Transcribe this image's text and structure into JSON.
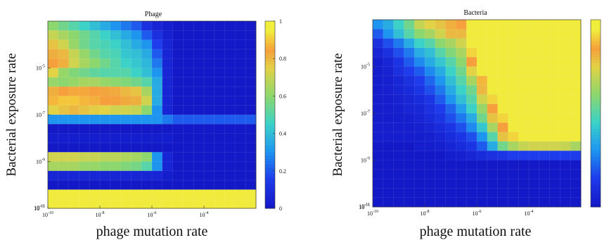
{
  "chart_data": [
    {
      "type": "heatmap",
      "title": "Phage",
      "xlabel": "phage mutation rate",
      "ylabel": "Bacterial exposure rate",
      "xticks": [
        "10^{-10}",
        "10^{-8}",
        "10^{-6}",
        "10^{-4}"
      ],
      "yticks": [
        "10^{-5}",
        "10^{-7}",
        "10^{-9}",
        "10^{-11}"
      ],
      "x_log_range": [
        -10,
        -2
      ],
      "y_log_range": [
        -11,
        -3
      ],
      "colorbar": {
        "ticks": [
          "0",
          "0.2",
          "0.4",
          "0.6",
          "0.8",
          "1"
        ],
        "range": [
          0,
          1
        ]
      },
      "grid": "rows (top to bottom: high to low exposure rate) x columns (low to high mutation rate), 20 x 20, values 0-1",
      "values": [
        [
          0.6,
          0.55,
          0.5,
          0.45,
          0.4,
          0.35,
          0.3,
          0.25,
          0.2,
          0.1,
          0.05,
          0.02,
          0.0,
          0.0,
          0.0,
          0.0,
          0.0,
          0.0,
          0.0,
          0.0
        ],
        [
          0.7,
          0.65,
          0.6,
          0.55,
          0.5,
          0.45,
          0.4,
          0.35,
          0.3,
          0.2,
          0.1,
          0.03,
          0.0,
          0.0,
          0.0,
          0.0,
          0.0,
          0.0,
          0.0,
          0.0
        ],
        [
          0.78,
          0.72,
          0.62,
          0.55,
          0.5,
          0.48,
          0.45,
          0.4,
          0.35,
          0.3,
          0.15,
          0.05,
          0.0,
          0.0,
          0.0,
          0.0,
          0.0,
          0.0,
          0.0,
          0.0
        ],
        [
          0.82,
          0.8,
          0.7,
          0.62,
          0.55,
          0.5,
          0.48,
          0.42,
          0.4,
          0.35,
          0.2,
          0.05,
          0.0,
          0.0,
          0.0,
          0.0,
          0.0,
          0.0,
          0.0,
          0.0
        ],
        [
          0.85,
          0.82,
          0.72,
          0.65,
          0.6,
          0.55,
          0.5,
          0.45,
          0.42,
          0.38,
          0.25,
          0.05,
          0.0,
          0.0,
          0.0,
          0.0,
          0.0,
          0.0,
          0.0,
          0.0
        ],
        [
          0.75,
          0.62,
          0.58,
          0.55,
          0.52,
          0.5,
          0.5,
          0.5,
          0.45,
          0.4,
          0.3,
          0.05,
          0.0,
          0.0,
          0.0,
          0.0,
          0.0,
          0.0,
          0.0,
          0.0
        ],
        [
          0.62,
          0.6,
          0.62,
          0.65,
          0.65,
          0.62,
          0.6,
          0.58,
          0.55,
          0.5,
          0.35,
          0.05,
          0.0,
          0.0,
          0.0,
          0.0,
          0.0,
          0.0,
          0.0,
          0.0
        ],
        [
          0.82,
          0.85,
          0.86,
          0.86,
          0.85,
          0.84,
          0.83,
          0.8,
          0.78,
          0.65,
          0.35,
          0.05,
          0.0,
          0.0,
          0.0,
          0.0,
          0.0,
          0.0,
          0.0,
          0.0
        ],
        [
          0.88,
          0.9,
          0.9,
          0.88,
          0.87,
          0.85,
          0.85,
          0.83,
          0.82,
          0.72,
          0.35,
          0.05,
          0.0,
          0.0,
          0.0,
          0.0,
          0.0,
          0.0,
          0.0,
          0.0
        ],
        [
          0.75,
          0.78,
          0.8,
          0.78,
          0.76,
          0.75,
          0.72,
          0.72,
          0.7,
          0.6,
          0.3,
          0.05,
          0.0,
          0.0,
          0.0,
          0.0,
          0.0,
          0.0,
          0.0,
          0.0
        ],
        [
          0.3,
          0.3,
          0.3,
          0.3,
          0.3,
          0.3,
          0.3,
          0.3,
          0.3,
          0.3,
          0.3,
          0.25,
          0.2,
          0.2,
          0.2,
          0.2,
          0.2,
          0.2,
          0.2,
          0.2
        ],
        [
          0.0,
          0.0,
          0.0,
          0.0,
          0.0,
          0.0,
          0.0,
          0.0,
          0.0,
          0.0,
          0.0,
          0.0,
          0.0,
          0.0,
          0.0,
          0.0,
          0.0,
          0.0,
          0.0,
          0.0
        ],
        [
          0.02,
          0.02,
          0.02,
          0.02,
          0.02,
          0.02,
          0.02,
          0.02,
          0.02,
          0.02,
          0.02,
          0.02,
          0.0,
          0.0,
          0.0,
          0.0,
          0.0,
          0.0,
          0.0,
          0.0
        ],
        [
          0.0,
          0.0,
          0.0,
          0.0,
          0.0,
          0.0,
          0.0,
          0.0,
          0.0,
          0.0,
          0.0,
          0.0,
          0.0,
          0.0,
          0.0,
          0.0,
          0.0,
          0.0,
          0.0,
          0.0
        ],
        [
          0.72,
          0.72,
          0.72,
          0.7,
          0.7,
          0.68,
          0.68,
          0.66,
          0.64,
          0.6,
          0.3,
          0.05,
          0.0,
          0.0,
          0.0,
          0.0,
          0.0,
          0.0,
          0.0,
          0.0
        ],
        [
          0.65,
          0.65,
          0.65,
          0.62,
          0.62,
          0.6,
          0.6,
          0.58,
          0.56,
          0.5,
          0.3,
          0.05,
          0.0,
          0.0,
          0.0,
          0.0,
          0.0,
          0.0,
          0.0,
          0.0
        ],
        [
          0.05,
          0.05,
          0.05,
          0.05,
          0.05,
          0.05,
          0.05,
          0.05,
          0.05,
          0.05,
          0.05,
          0.02,
          0.0,
          0.0,
          0.0,
          0.0,
          0.0,
          0.0,
          0.0,
          0.0
        ],
        [
          0.0,
          0.0,
          0.0,
          0.0,
          0.0,
          0.0,
          0.0,
          0.0,
          0.0,
          0.0,
          0.0,
          0.0,
          0.0,
          0.0,
          0.0,
          0.0,
          0.0,
          0.0,
          0.0,
          0.0
        ],
        [
          0.95,
          0.95,
          0.95,
          0.95,
          0.95,
          0.95,
          0.95,
          0.95,
          0.95,
          0.95,
          0.95,
          0.95,
          0.95,
          0.95,
          0.95,
          0.95,
          0.95,
          0.95,
          0.95,
          0.95
        ],
        [
          0.95,
          0.95,
          0.95,
          0.95,
          0.95,
          0.95,
          0.95,
          0.95,
          0.95,
          0.95,
          0.95,
          0.95,
          0.95,
          0.95,
          0.95,
          0.95,
          0.95,
          0.95,
          0.95,
          0.95
        ]
      ]
    },
    {
      "type": "heatmap",
      "title": "Bacteria",
      "xlabel": "phage mutation rate",
      "ylabel": "Bacterial exposure rate",
      "xticks": [
        "10^{-10}",
        "10^{-8}",
        "10^{-6}",
        "10^{-4}"
      ],
      "yticks": [
        "10^{-5}",
        "10^{-7}",
        "10^{-9}",
        "10^{-11}"
      ],
      "x_log_range": [
        -10,
        -2
      ],
      "y_log_range": [
        -11,
        -3
      ],
      "colorbar": {
        "ticks": [],
        "range": [
          0,
          1
        ]
      },
      "grid": "rows (top to bottom: high to low exposure rate) x columns (low to high mutation rate), 20 x 20, values 0-1",
      "values": [
        [
          0.3,
          0.35,
          0.45,
          0.55,
          0.7,
          0.75,
          0.78,
          0.82,
          0.85,
          0.95,
          0.95,
          0.95,
          0.95,
          0.95,
          0.95,
          0.95,
          0.95,
          0.95,
          0.95,
          0.95
        ],
        [
          0.2,
          0.3,
          0.4,
          0.5,
          0.6,
          0.65,
          0.72,
          0.8,
          0.8,
          0.95,
          0.95,
          0.95,
          0.95,
          0.95,
          0.95,
          0.95,
          0.95,
          0.95,
          0.95,
          0.95
        ],
        [
          0.1,
          0.18,
          0.25,
          0.35,
          0.45,
          0.5,
          0.6,
          0.65,
          0.72,
          0.95,
          0.95,
          0.95,
          0.95,
          0.95,
          0.95,
          0.95,
          0.95,
          0.95,
          0.95,
          0.95
        ],
        [
          0.05,
          0.1,
          0.18,
          0.25,
          0.35,
          0.4,
          0.5,
          0.58,
          0.65,
          0.92,
          0.95,
          0.95,
          0.95,
          0.95,
          0.95,
          0.95,
          0.95,
          0.95,
          0.95,
          0.95
        ],
        [
          0.02,
          0.05,
          0.12,
          0.2,
          0.28,
          0.35,
          0.42,
          0.5,
          0.6,
          0.85,
          0.95,
          0.95,
          0.95,
          0.95,
          0.95,
          0.95,
          0.95,
          0.95,
          0.95,
          0.95
        ],
        [
          0.02,
          0.04,
          0.1,
          0.15,
          0.2,
          0.28,
          0.35,
          0.45,
          0.55,
          0.75,
          0.95,
          0.95,
          0.95,
          0.95,
          0.95,
          0.95,
          0.95,
          0.95,
          0.95,
          0.95
        ],
        [
          0.02,
          0.03,
          0.06,
          0.1,
          0.15,
          0.22,
          0.3,
          0.4,
          0.5,
          0.65,
          0.88,
          0.95,
          0.95,
          0.95,
          0.95,
          0.95,
          0.95,
          0.95,
          0.95,
          0.95
        ],
        [
          0.02,
          0.03,
          0.05,
          0.08,
          0.12,
          0.18,
          0.25,
          0.35,
          0.45,
          0.55,
          0.8,
          0.95,
          0.95,
          0.95,
          0.95,
          0.95,
          0.95,
          0.95,
          0.95,
          0.95
        ],
        [
          0.02,
          0.02,
          0.04,
          0.06,
          0.08,
          0.12,
          0.2,
          0.3,
          0.4,
          0.5,
          0.72,
          0.92,
          0.95,
          0.95,
          0.95,
          0.95,
          0.95,
          0.95,
          0.95,
          0.95
        ],
        [
          0.02,
          0.02,
          0.03,
          0.05,
          0.06,
          0.1,
          0.15,
          0.22,
          0.32,
          0.45,
          0.62,
          0.85,
          0.95,
          0.95,
          0.95,
          0.95,
          0.95,
          0.95,
          0.95,
          0.95
        ],
        [
          0.02,
          0.02,
          0.02,
          0.03,
          0.05,
          0.08,
          0.12,
          0.18,
          0.25,
          0.35,
          0.55,
          0.78,
          0.92,
          0.95,
          0.95,
          0.95,
          0.95,
          0.95,
          0.95,
          0.95
        ],
        [
          0.02,
          0.02,
          0.02,
          0.02,
          0.03,
          0.05,
          0.08,
          0.12,
          0.18,
          0.28,
          0.42,
          0.65,
          0.85,
          0.95,
          0.95,
          0.95,
          0.95,
          0.95,
          0.95,
          0.95
        ],
        [
          0.02,
          0.02,
          0.02,
          0.02,
          0.02,
          0.03,
          0.05,
          0.08,
          0.12,
          0.18,
          0.3,
          0.5,
          0.78,
          0.92,
          0.95,
          0.95,
          0.95,
          0.95,
          0.95,
          0.95
        ],
        [
          0.0,
          0.0,
          0.0,
          0.0,
          0.02,
          0.02,
          0.03,
          0.05,
          0.08,
          0.12,
          0.2,
          0.35,
          0.55,
          0.65,
          0.7,
          0.72,
          0.72,
          0.72,
          0.7,
          0.65
        ],
        [
          0.0,
          0.0,
          0.0,
          0.0,
          0.0,
          0.0,
          0.0,
          0.02,
          0.03,
          0.05,
          0.08,
          0.1,
          0.12,
          0.15,
          0.15,
          0.15,
          0.15,
          0.15,
          0.15,
          0.15
        ],
        [
          0.0,
          0.0,
          0.0,
          0.0,
          0.0,
          0.0,
          0.0,
          0.0,
          0.0,
          0.0,
          0.0,
          0.0,
          0.0,
          0.0,
          0.0,
          0.0,
          0.0,
          0.0,
          0.0,
          0.0
        ],
        [
          0.0,
          0.0,
          0.0,
          0.0,
          0.0,
          0.0,
          0.0,
          0.0,
          0.0,
          0.0,
          0.0,
          0.0,
          0.0,
          0.0,
          0.0,
          0.0,
          0.0,
          0.0,
          0.0,
          0.0
        ],
        [
          0.0,
          0.0,
          0.0,
          0.0,
          0.0,
          0.0,
          0.0,
          0.0,
          0.0,
          0.0,
          0.0,
          0.0,
          0.0,
          0.0,
          0.0,
          0.0,
          0.0,
          0.0,
          0.0,
          0.0
        ],
        [
          0.0,
          0.0,
          0.0,
          0.0,
          0.0,
          0.0,
          0.0,
          0.0,
          0.0,
          0.0,
          0.0,
          0.0,
          0.0,
          0.0,
          0.0,
          0.0,
          0.0,
          0.0,
          0.0,
          0.0
        ],
        [
          0.0,
          0.0,
          0.0,
          0.0,
          0.0,
          0.0,
          0.0,
          0.0,
          0.0,
          0.0,
          0.0,
          0.0,
          0.0,
          0.0,
          0.0,
          0.0,
          0.0,
          0.0,
          0.0,
          0.0
        ]
      ]
    }
  ]
}
